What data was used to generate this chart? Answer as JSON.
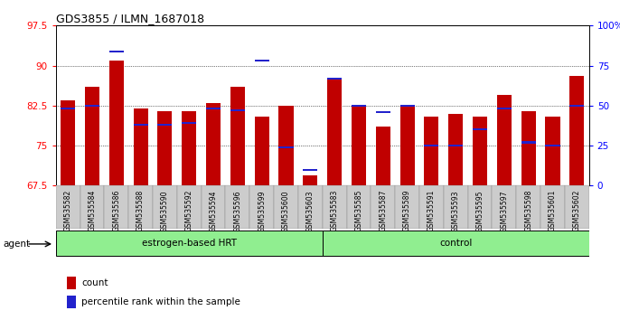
{
  "title": "GDS3855 / ILMN_1687018",
  "samples": [
    "GSM535582",
    "GSM535584",
    "GSM535586",
    "GSM535588",
    "GSM535590",
    "GSM535592",
    "GSM535594",
    "GSM535596",
    "GSM535599",
    "GSM535600",
    "GSM535603",
    "GSM535583",
    "GSM535585",
    "GSM535587",
    "GSM535589",
    "GSM535591",
    "GSM535593",
    "GSM535595",
    "GSM535597",
    "GSM535598",
    "GSM535601",
    "GSM535602"
  ],
  "red_values": [
    83.5,
    86.0,
    91.0,
    82.0,
    81.5,
    81.5,
    83.0,
    86.0,
    80.5,
    82.5,
    69.5,
    87.5,
    82.5,
    78.5,
    82.5,
    80.5,
    81.0,
    80.5,
    84.5,
    81.5,
    80.5,
    88.0
  ],
  "blue_values": [
    48,
    50,
    84,
    38,
    38,
    39,
    48,
    47,
    78,
    24,
    10,
    67,
    50,
    46,
    50,
    25,
    25,
    35,
    48,
    27,
    25,
    50
  ],
  "group_divider": 11,
  "group0_label": "estrogen-based HRT",
  "group1_label": "control",
  "group_color": "#90EE90",
  "ylim_left": [
    67.5,
    97.5
  ],
  "yticks_left": [
    67.5,
    75.0,
    82.5,
    90.0,
    97.5
  ],
  "ylim_right": [
    0,
    100
  ],
  "yticks_right": [
    0,
    25,
    50,
    75,
    100
  ],
  "ytick_labels_right": [
    "0",
    "25",
    "50",
    "75",
    "100%"
  ],
  "bar_color": "#C00000",
  "blue_color": "#2222CC",
  "agent_label": "agent",
  "legend_count": "count",
  "legend_pct": "percentile rank within the sample"
}
